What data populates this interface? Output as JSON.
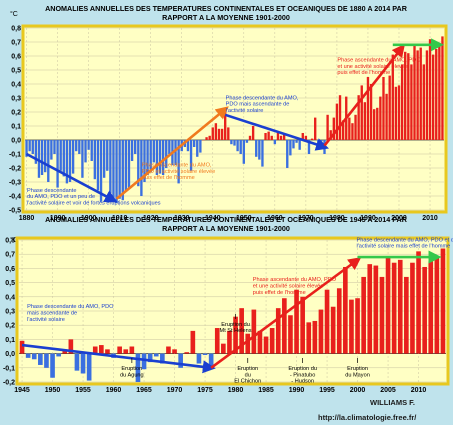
{
  "chart_data": [
    {
      "type": "bar",
      "title": "ANOMALIES ANNUELLES DES TEMPERATURES CONTINENTALES ET OCEANIQUES DE 1880 A 2014 PAR",
      "subtitle": "RAPPORT A LA MOYENNE 1901-2000",
      "ylabel": "°C",
      "ylim": [
        -0.5,
        0.8
      ],
      "yticks": [
        "0,8",
        "0,7",
        "0,6",
        "0,5",
        "0,4",
        "0,3",
        "0,2",
        "0,1",
        "0,0",
        "-0,1",
        "-0,2",
        "-0,3",
        "-0,4",
        "-0,5"
      ],
      "xticks": [
        "1880",
        "1890",
        "1900",
        "1910",
        "1920",
        "1930",
        "1940",
        "1950",
        "1960",
        "1970",
        "1980",
        "1990",
        "2000",
        "2010"
      ],
      "x_range": [
        1880,
        2014
      ],
      "colors": {
        "negative": "#3a6fe0",
        "positive": "#e8201c",
        "frame": "#e8c81e"
      },
      "x": [
        1880,
        1881,
        1882,
        1883,
        1884,
        1885,
        1886,
        1887,
        1888,
        1889,
        1890,
        1891,
        1892,
        1893,
        1894,
        1895,
        1896,
        1897,
        1898,
        1899,
        1900,
        1901,
        1902,
        1903,
        1904,
        1905,
        1906,
        1907,
        1908,
        1909,
        1910,
        1911,
        1912,
        1913,
        1914,
        1915,
        1916,
        1917,
        1918,
        1919,
        1920,
        1921,
        1922,
        1923,
        1924,
        1925,
        1926,
        1927,
        1928,
        1929,
        1930,
        1931,
        1932,
        1933,
        1934,
        1935,
        1936,
        1937,
        1938,
        1939,
        1940,
        1941,
        1942,
        1943,
        1944,
        1945,
        1946,
        1947,
        1948,
        1949,
        1950,
        1951,
        1952,
        1953,
        1954,
        1955,
        1956,
        1957,
        1958,
        1959,
        1960,
        1961,
        1962,
        1963,
        1964,
        1965,
        1966,
        1967,
        1968,
        1969,
        1970,
        1971,
        1972,
        1973,
        1974,
        1975,
        1976,
        1977,
        1978,
        1979,
        1980,
        1981,
        1982,
        1983,
        1984,
        1985,
        1986,
        1987,
        1988,
        1989,
        1990,
        1991,
        1992,
        1993,
        1994,
        1995,
        1996,
        1997,
        1998,
        1999,
        2000,
        2001,
        2002,
        2003,
        2004,
        2005,
        2006,
        2007,
        2008,
        2009,
        2010,
        2011,
        2012,
        2013,
        2014
      ],
      "values": [
        -0.12,
        -0.08,
        -0.1,
        -0.17,
        -0.27,
        -0.25,
        -0.23,
        -0.3,
        -0.14,
        -0.1,
        -0.34,
        -0.22,
        -0.26,
        -0.31,
        -0.3,
        -0.24,
        -0.08,
        -0.1,
        -0.27,
        -0.16,
        -0.07,
        -0.15,
        -0.28,
        -0.36,
        -0.44,
        -0.27,
        -0.22,
        -0.38,
        -0.43,
        -0.45,
        -0.42,
        -0.43,
        -0.36,
        -0.34,
        -0.15,
        -0.1,
        -0.33,
        -0.4,
        -0.3,
        -0.25,
        -0.23,
        -0.16,
        -0.25,
        -0.24,
        -0.25,
        -0.2,
        -0.1,
        -0.18,
        -0.18,
        -0.31,
        -0.08,
        -0.05,
        -0.08,
        -0.22,
        -0.05,
        -0.12,
        -0.09,
        0.0,
        0.02,
        0.03,
        0.09,
        0.12,
        0.08,
        0.08,
        0.2,
        0.09,
        -0.03,
        -0.04,
        -0.08,
        -0.1,
        -0.17,
        -0.02,
        0.03,
        0.1,
        -0.12,
        -0.14,
        -0.19,
        0.05,
        0.06,
        0.03,
        -0.03,
        0.05,
        0.03,
        0.05,
        -0.2,
        -0.11,
        -0.06,
        -0.02,
        -0.07,
        0.05,
        0.03,
        -0.1,
        0.01,
        0.16,
        -0.07,
        -0.01,
        -0.1,
        0.18,
        0.07,
        0.16,
        0.26,
        0.32,
        0.14,
        0.31,
        0.16,
        0.12,
        0.18,
        0.32,
        0.39,
        0.27,
        0.45,
        0.4,
        0.22,
        0.23,
        0.31,
        0.45,
        0.33,
        0.46,
        0.61,
        0.38,
        0.39,
        0.54,
        0.63,
        0.62,
        0.54,
        0.68,
        0.64,
        0.66,
        0.54,
        0.64,
        0.72,
        0.61,
        0.65,
        0.68,
        0.74
      ],
      "arrows": [
        {
          "label": "down",
          "from": [
            1880,
            -0.1
          ],
          "to": [
            1908,
            -0.43
          ],
          "color": "#1a3fd0"
        },
        {
          "label": "up",
          "from": [
            1909,
            -0.42
          ],
          "to": [
            1944,
            0.22
          ],
          "color": "#f07a1e"
        },
        {
          "label": "down",
          "from": [
            1944,
            0.18
          ],
          "to": [
            1976,
            -0.05
          ],
          "color": "#1a3fd0"
        },
        {
          "label": "up",
          "from": [
            1976,
            -0.04
          ],
          "to": [
            2001,
            0.66
          ],
          "color": "#e8201c"
        },
        {
          "label": "plateau",
          "from": [
            1998,
            0.68
          ],
          "to": [
            2013,
            0.68
          ],
          "color": "#34c84a"
        }
      ],
      "annotations": [
        {
          "text": [
            "Phase descendante",
            "du AMO, PDO et un peu de",
            "l'activité solaire et voir de fortes éruptions volcaniques"
          ],
          "x": 1880,
          "y": -0.37,
          "color": "#1a3fd0"
        },
        {
          "text": [
            "Phase ascendante du AMO,",
            "PDO et activité solaire élevée",
            "puis effet de l'homme"
          ],
          "x": 1917,
          "y": -0.19,
          "color": "#f07a1e"
        },
        {
          "text": [
            "Phase descendante du AMO,",
            "PDO mais ascendante de",
            "l'activité  solaire"
          ],
          "x": 1944,
          "y": 0.29,
          "color": "#1a3fd0"
        },
        {
          "text": [
            "Phase ascendante du AMO, PDO",
            "et une activité solaire élevée",
            "puis effet de l'homme"
          ],
          "x": 1980,
          "y": 0.56,
          "color": "#e8201c"
        }
      ]
    },
    {
      "type": "bar",
      "title": "ANOMALIES ANNUELLES DES TEMPERATURES CONTINENTALES ET OCEANIQUES DE 1945 A 2014 PAR",
      "subtitle": "RAPPORT A LA MOYENNE 1901-2000",
      "ylabel": "°C",
      "ylim": [
        -0.2,
        0.8
      ],
      "yticks": [
        "0,8",
        "0,7",
        "0,6",
        "0,5",
        "0,4",
        "0,3",
        "0,2",
        "0,1",
        "0,0",
        "-0,1",
        "-0,2"
      ],
      "xticks": [
        "1945",
        "1950",
        "1955",
        "1960",
        "1965",
        "1970",
        "1975",
        "1980",
        "1985",
        "1990",
        "1995",
        "2000",
        "2005",
        "2010"
      ],
      "x_range": [
        1945,
        2014
      ],
      "colors": {
        "negative": "#3a6fe0",
        "positive": "#e8201c",
        "frame": "#e8c81e"
      },
      "x": [
        1945,
        1946,
        1947,
        1948,
        1949,
        1950,
        1951,
        1952,
        1953,
        1954,
        1955,
        1956,
        1957,
        1958,
        1959,
        1960,
        1961,
        1962,
        1963,
        1964,
        1965,
        1966,
        1967,
        1968,
        1969,
        1970,
        1971,
        1972,
        1973,
        1974,
        1975,
        1976,
        1977,
        1978,
        1979,
        1980,
        1981,
        1982,
        1983,
        1984,
        1985,
        1986,
        1987,
        1988,
        1989,
        1990,
        1991,
        1992,
        1993,
        1994,
        1995,
        1996,
        1997,
        1998,
        1999,
        2000,
        2001,
        2002,
        2003,
        2004,
        2005,
        2006,
        2007,
        2008,
        2009,
        2010,
        2011,
        2012,
        2013,
        2014
      ],
      "values": [
        0.09,
        -0.03,
        -0.04,
        -0.08,
        -0.1,
        -0.17,
        -0.02,
        0.03,
        0.1,
        -0.12,
        -0.14,
        -0.19,
        0.05,
        0.06,
        0.03,
        -0.03,
        0.05,
        0.03,
        0.05,
        -0.2,
        -0.11,
        -0.06,
        -0.02,
        -0.07,
        0.05,
        0.03,
        -0.1,
        0.01,
        0.16,
        -0.07,
        -0.01,
        -0.1,
        0.18,
        0.07,
        0.16,
        0.26,
        0.32,
        0.14,
        0.31,
        0.16,
        0.12,
        0.18,
        0.32,
        0.39,
        0.27,
        0.45,
        0.4,
        0.22,
        0.23,
        0.31,
        0.45,
        0.33,
        0.46,
        0.61,
        0.38,
        0.39,
        0.54,
        0.63,
        0.62,
        0.54,
        0.68,
        0.64,
        0.66,
        0.54,
        0.64,
        0.72,
        0.61,
        0.65,
        0.68,
        0.74
      ],
      "arrows": [
        {
          "label": "down",
          "from": [
            1945,
            0.06
          ],
          "to": [
            1976,
            -0.1
          ],
          "color": "#1a3fd0"
        },
        {
          "label": "up",
          "from": [
            1976,
            -0.1
          ],
          "to": [
            2000,
            0.66
          ],
          "color": "#e8201c"
        },
        {
          "label": "plateau",
          "from": [
            2000,
            0.68
          ],
          "to": [
            2013,
            0.68
          ],
          "color": "#34c84a"
        }
      ],
      "annotations": [
        {
          "text": [
            "Phase descendante du AMO, PDO",
            "mais ascendante de",
            "l'activité solaire"
          ],
          "x": 1946,
          "y": 0.32,
          "color": "#1a3fd0"
        },
        {
          "text": [
            "Phase ascendante du AMO, PDO",
            "et une activité solaire élevée",
            "puis effet de l'homme"
          ],
          "x": 1983,
          "y": 0.51,
          "color": "#e8201c"
        },
        {
          "text": [
            "Phase descendante du AMO, PDO et de",
            "l'activité solaire mais effet de l'homme"
          ],
          "x": 2000,
          "y": 0.79,
          "color": "#1a3fd0"
        }
      ],
      "events": [
        {
          "text": [
            "Eruption",
            "du Agung"
          ],
          "x": 1963,
          "label_y": -0.08
        },
        {
          "text": [
            "Eruption du",
            "Mt St Helens"
          ],
          "x": 1980,
          "label_y": 0.23
        },
        {
          "text": [
            "Eruption",
            "du",
            "El Chichon"
          ],
          "x": 1982,
          "label_y": -0.08
        },
        {
          "text": [
            "Eruption du",
            "- Pinatubo",
            "- Hudson"
          ],
          "x": 1991,
          "label_y": -0.08
        },
        {
          "text": [
            "Eruption",
            "du Mayon"
          ],
          "x": 2000,
          "label_y": -0.08
        }
      ]
    }
  ],
  "signature": {
    "name": "WILLIAMS F.",
    "url": "http://la.climatologie.free.fr/"
  }
}
